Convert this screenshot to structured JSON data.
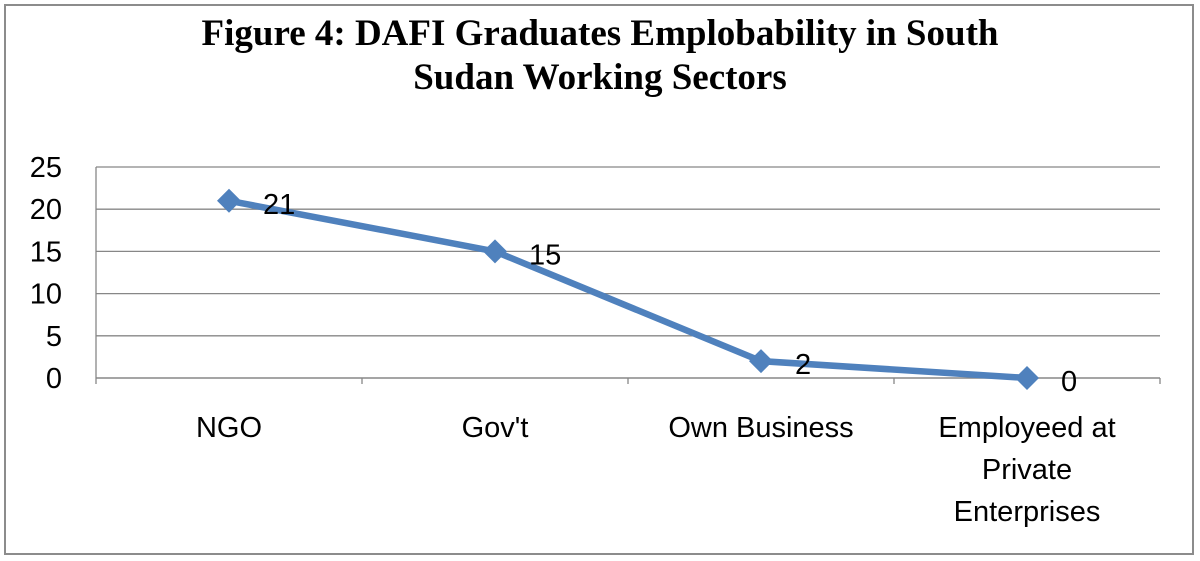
{
  "chart_data": {
    "type": "line",
    "title_lines": [
      "Figure 4: DAFI Graduates Emplobability in South",
      "Sudan Working Sectors"
    ],
    "categories": [
      [
        "NGO"
      ],
      [
        "Gov't"
      ],
      [
        "Own Business"
      ],
      [
        "Employeed at",
        "Private",
        "Enterprises"
      ]
    ],
    "values": [
      21,
      15,
      2,
      0
    ],
    "y_ticks": [
      "0",
      "5",
      "10",
      "15",
      "20",
      "25"
    ],
    "ylim": [
      0,
      25
    ],
    "xlabel": "",
    "ylabel": "",
    "grid": true,
    "legend": "none",
    "marker": "diamond",
    "data_labels": true,
    "colors": {
      "series": "#4f81bd",
      "grid": "#878787",
      "frame": "#8c8c8c"
    }
  }
}
